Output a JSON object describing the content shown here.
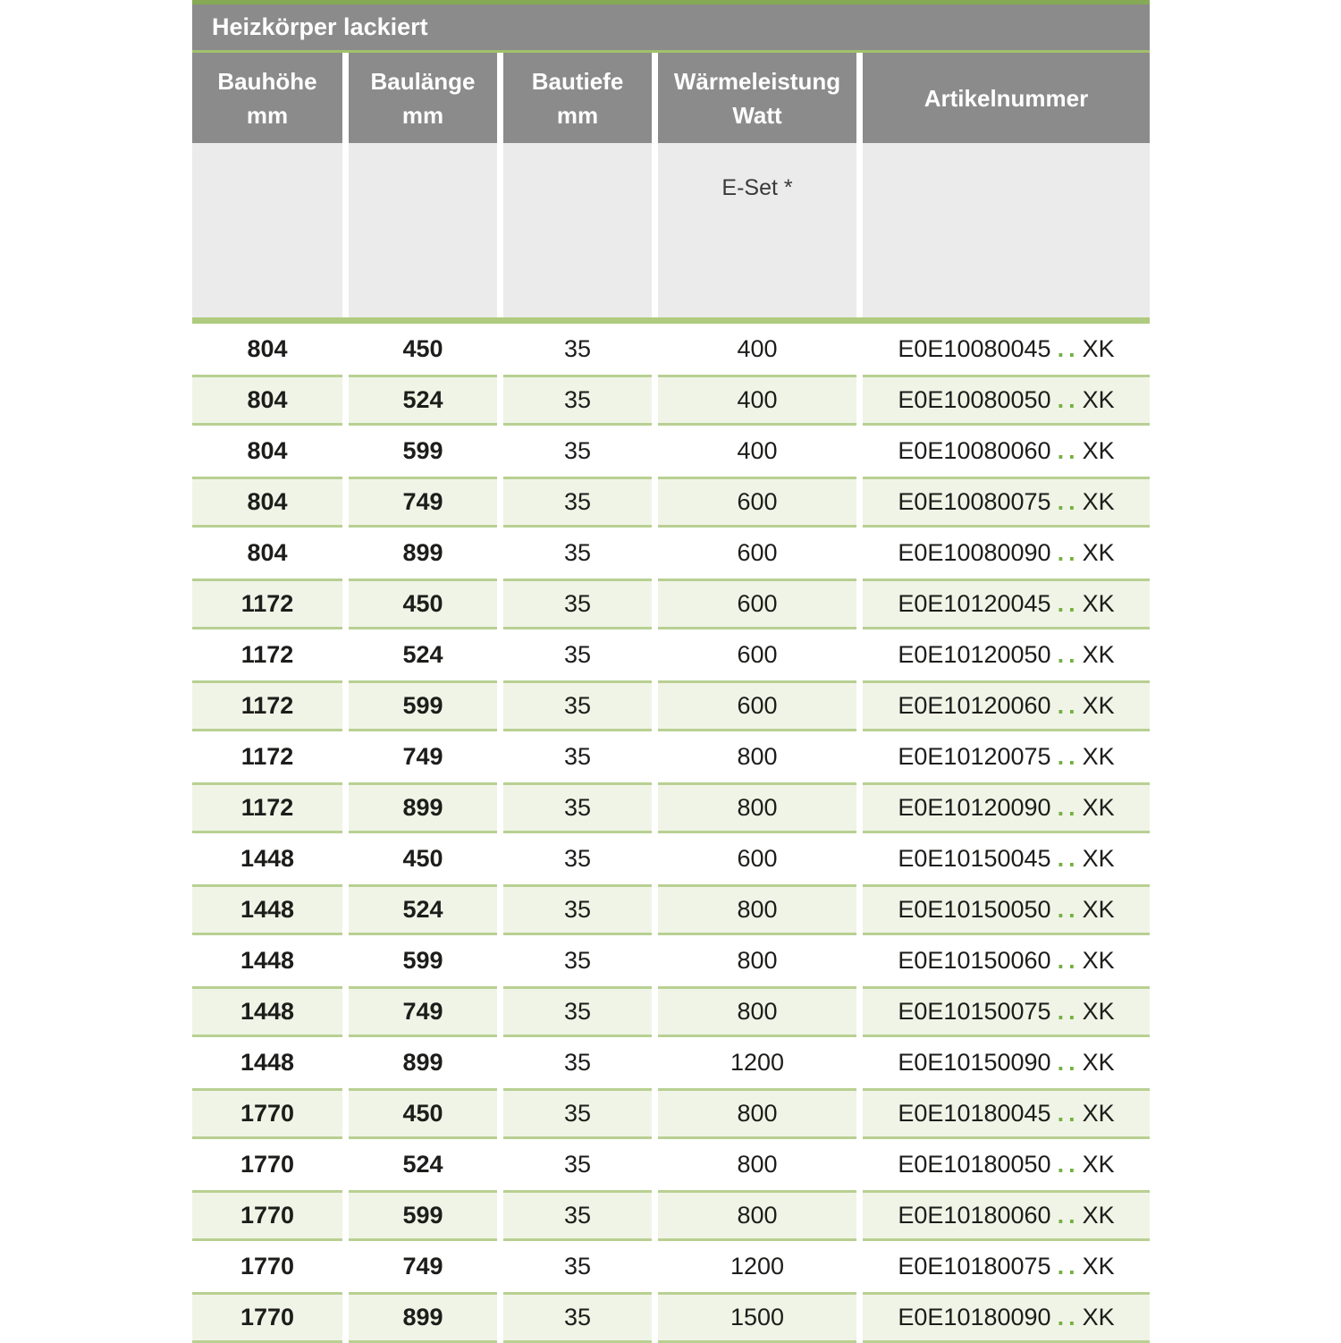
{
  "table": {
    "title": "Heizkörper lackiert",
    "columns": [
      {
        "key": "bauhoehe",
        "label": "Bauhöhe",
        "unit": "mm"
      },
      {
        "key": "baulaenge",
        "label": "Baulänge",
        "unit": "mm"
      },
      {
        "key": "bautiefe",
        "label": "Bautiefe",
        "unit": "mm"
      },
      {
        "key": "waermeleistung",
        "label": "Wärmeleistung",
        "unit": "Watt"
      },
      {
        "key": "artikelnummer",
        "label": "Artikelnummer",
        "unit": ""
      }
    ],
    "subheader": {
      "e_set_label": "E-Set *"
    },
    "rows": [
      {
        "bauhoehe": "804",
        "baulaenge": "450",
        "bautiefe": "35",
        "watt": "400",
        "artikel_prefix": "E0E10080045",
        "artikel_dots": "..",
        "artikel_suffix": "XK"
      },
      {
        "bauhoehe": "804",
        "baulaenge": "524",
        "bautiefe": "35",
        "watt": "400",
        "artikel_prefix": "E0E10080050",
        "artikel_dots": "..",
        "artikel_suffix": "XK"
      },
      {
        "bauhoehe": "804",
        "baulaenge": "599",
        "bautiefe": "35",
        "watt": "400",
        "artikel_prefix": "E0E10080060",
        "artikel_dots": "..",
        "artikel_suffix": "XK"
      },
      {
        "bauhoehe": "804",
        "baulaenge": "749",
        "bautiefe": "35",
        "watt": "600",
        "artikel_prefix": "E0E10080075",
        "artikel_dots": "..",
        "artikel_suffix": "XK"
      },
      {
        "bauhoehe": "804",
        "baulaenge": "899",
        "bautiefe": "35",
        "watt": "600",
        "artikel_prefix": "E0E10080090",
        "artikel_dots": "..",
        "artikel_suffix": "XK"
      },
      {
        "bauhoehe": "1172",
        "baulaenge": "450",
        "bautiefe": "35",
        "watt": "600",
        "artikel_prefix": "E0E10120045",
        "artikel_dots": "..",
        "artikel_suffix": "XK"
      },
      {
        "bauhoehe": "1172",
        "baulaenge": "524",
        "bautiefe": "35",
        "watt": "600",
        "artikel_prefix": "E0E10120050",
        "artikel_dots": "..",
        "artikel_suffix": "XK"
      },
      {
        "bauhoehe": "1172",
        "baulaenge": "599",
        "bautiefe": "35",
        "watt": "600",
        "artikel_prefix": "E0E10120060",
        "artikel_dots": "..",
        "artikel_suffix": "XK"
      },
      {
        "bauhoehe": "1172",
        "baulaenge": "749",
        "bautiefe": "35",
        "watt": "800",
        "artikel_prefix": "E0E10120075",
        "artikel_dots": "..",
        "artikel_suffix": "XK"
      },
      {
        "bauhoehe": "1172",
        "baulaenge": "899",
        "bautiefe": "35",
        "watt": "800",
        "artikel_prefix": "E0E10120090",
        "artikel_dots": "..",
        "artikel_suffix": "XK"
      },
      {
        "bauhoehe": "1448",
        "baulaenge": "450",
        "bautiefe": "35",
        "watt": "600",
        "artikel_prefix": "E0E10150045",
        "artikel_dots": "..",
        "artikel_suffix": "XK"
      },
      {
        "bauhoehe": "1448",
        "baulaenge": "524",
        "bautiefe": "35",
        "watt": "800",
        "artikel_prefix": "E0E10150050",
        "artikel_dots": "..",
        "artikel_suffix": "XK"
      },
      {
        "bauhoehe": "1448",
        "baulaenge": "599",
        "bautiefe": "35",
        "watt": "800",
        "artikel_prefix": "E0E10150060",
        "artikel_dots": "..",
        "artikel_suffix": "XK"
      },
      {
        "bauhoehe": "1448",
        "baulaenge": "749",
        "bautiefe": "35",
        "watt": "800",
        "artikel_prefix": "E0E10150075",
        "artikel_dots": "..",
        "artikel_suffix": "XK"
      },
      {
        "bauhoehe": "1448",
        "baulaenge": "899",
        "bautiefe": "35",
        "watt": "1200",
        "artikel_prefix": "E0E10150090",
        "artikel_dots": "..",
        "artikel_suffix": "XK"
      },
      {
        "bauhoehe": "1770",
        "baulaenge": "450",
        "bautiefe": "35",
        "watt": "800",
        "artikel_prefix": "E0E10180045",
        "artikel_dots": "..",
        "artikel_suffix": "XK"
      },
      {
        "bauhoehe": "1770",
        "baulaenge": "524",
        "bautiefe": "35",
        "watt": "800",
        "artikel_prefix": "E0E10180050",
        "artikel_dots": "..",
        "artikel_suffix": "XK"
      },
      {
        "bauhoehe": "1770",
        "baulaenge": "599",
        "bautiefe": "35",
        "watt": "800",
        "artikel_prefix": "E0E10180060",
        "artikel_dots": "..",
        "artikel_suffix": "XK"
      },
      {
        "bauhoehe": "1770",
        "baulaenge": "749",
        "bautiefe": "35",
        "watt": "1200",
        "artikel_prefix": "E0E10180075",
        "artikel_dots": "..",
        "artikel_suffix": "XK"
      },
      {
        "bauhoehe": "1770",
        "baulaenge": "899",
        "bautiefe": "35",
        "watt": "1500",
        "artikel_prefix": "E0E10180090",
        "artikel_dots": "..",
        "artikel_suffix": "XK"
      }
    ]
  },
  "colors": {
    "top_accent_bar": "#86a956",
    "header_gray": "#8b8b8b",
    "title_divider_green": "#a2c06d",
    "subheader_light_gray": "#ebebeb",
    "thick_divider_green": "#aecb7e",
    "row_green_background": "#f0f4e6",
    "row_green_border": "#b8d092",
    "article_dots_green": "#75b042",
    "text": "#1d1d1b"
  }
}
